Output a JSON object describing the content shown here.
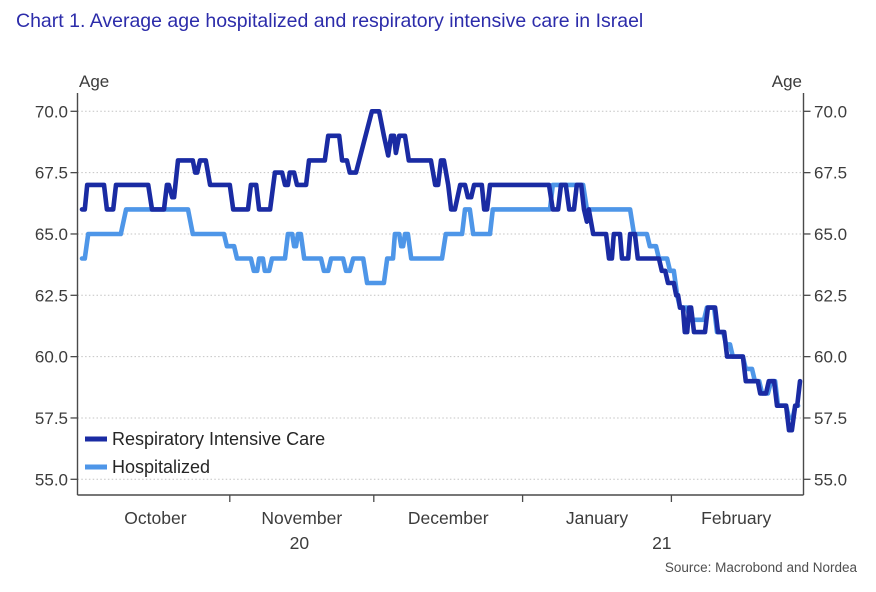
{
  "title": "Chart 1. Average age hospitalized and respiratory intensive care in Israel",
  "source": "Source: Macrobond and Nordea",
  "chart_data": {
    "type": "line",
    "title": "Chart 1. Average age hospitalized and respiratory intensive care in Israel",
    "ylabel": "Age",
    "ylabel_right": "Age",
    "ylim": [
      55.0,
      70.0
    ],
    "yticks": [
      55.0,
      57.5,
      60.0,
      62.5,
      65.0,
      67.5,
      70.0
    ],
    "grid": "horizontal-dotted",
    "legend_position": "inside-bottom-left",
    "x_unit": "days since 1 Oct 2020",
    "months": [
      {
        "label": "October",
        "start": 0,
        "end": 31
      },
      {
        "label": "November",
        "start": 31,
        "end": 61
      },
      {
        "label": "December",
        "start": 61,
        "end": 92
      },
      {
        "label": "January",
        "start": 92,
        "end": 123
      },
      {
        "label": "February",
        "start": 123,
        "end": 151
      }
    ],
    "year_labels": [
      {
        "label": "20",
        "day": 45.5
      },
      {
        "label": "21",
        "day": 121
      }
    ],
    "series": [
      {
        "name": "Hospitalized",
        "color": "#4e96e8",
        "points": [
          [
            0.2,
            64
          ],
          [
            0.8,
            64
          ],
          [
            1.5,
            65
          ],
          [
            8.3,
            65
          ],
          [
            9.4,
            66
          ],
          [
            22.3,
            66
          ],
          [
            23.3,
            65
          ],
          [
            29.8,
            65
          ],
          [
            30.4,
            64.5
          ],
          [
            31.9,
            64.5
          ],
          [
            32.5,
            64
          ],
          [
            35.4,
            64
          ],
          [
            36,
            63.5
          ],
          [
            36.7,
            63.5
          ],
          [
            37.1,
            64
          ],
          [
            37.9,
            64
          ],
          [
            38.3,
            63.5
          ],
          [
            39.2,
            63.5
          ],
          [
            39.8,
            64
          ],
          [
            42.5,
            64
          ],
          [
            43.1,
            65
          ],
          [
            44,
            65
          ],
          [
            44.4,
            64.5
          ],
          [
            44.8,
            64.5
          ],
          [
            45.2,
            65
          ],
          [
            45.8,
            65
          ],
          [
            46.5,
            64
          ],
          [
            50,
            64
          ],
          [
            50.6,
            63.5
          ],
          [
            51.5,
            63.5
          ],
          [
            52.1,
            64
          ],
          [
            54.6,
            64
          ],
          [
            55.2,
            63.5
          ],
          [
            56,
            63.5
          ],
          [
            56.7,
            64
          ],
          [
            58.8,
            64
          ],
          [
            59.6,
            63
          ],
          [
            63.1,
            63
          ],
          [
            63.8,
            64
          ],
          [
            65,
            64
          ],
          [
            65.4,
            65
          ],
          [
            66.3,
            65
          ],
          [
            66.7,
            64.5
          ],
          [
            67.1,
            64.5
          ],
          [
            67.5,
            65
          ],
          [
            68.1,
            65
          ],
          [
            68.8,
            64
          ],
          [
            75.2,
            64
          ],
          [
            76,
            65
          ],
          [
            79.4,
            65
          ],
          [
            80,
            66
          ],
          [
            81,
            66
          ],
          [
            81.7,
            65
          ],
          [
            85.2,
            65
          ],
          [
            85.8,
            66
          ],
          [
            97.7,
            66
          ],
          [
            98.3,
            67
          ],
          [
            104.6,
            67
          ],
          [
            105.4,
            66
          ],
          [
            114.4,
            66
          ],
          [
            115.2,
            65
          ],
          [
            117.9,
            65
          ],
          [
            118.5,
            64.5
          ],
          [
            119.8,
            64.5
          ],
          [
            120.4,
            64
          ],
          [
            122.1,
            64
          ],
          [
            122.7,
            63.5
          ],
          [
            123.5,
            63.5
          ],
          [
            124.2,
            62.5
          ],
          [
            124.8,
            62
          ],
          [
            126.3,
            62
          ],
          [
            126.9,
            61.5
          ],
          [
            129.8,
            61.5
          ],
          [
            130.4,
            62
          ],
          [
            131.9,
            62
          ],
          [
            132.5,
            61
          ],
          [
            133.8,
            61
          ],
          [
            134.4,
            60.5
          ],
          [
            135.2,
            60.5
          ],
          [
            135.8,
            60
          ],
          [
            137.9,
            60
          ],
          [
            138.5,
            59.5
          ],
          [
            139.8,
            59.5
          ],
          [
            140.4,
            59
          ],
          [
            141.3,
            59
          ],
          [
            141.9,
            58.5
          ],
          [
            143.1,
            58.5
          ],
          [
            143.8,
            59
          ],
          [
            144.6,
            59
          ],
          [
            145.2,
            58
          ],
          [
            146.9,
            58
          ],
          [
            147.5,
            57.5
          ],
          [
            148.3,
            57.5
          ],
          [
            148.8,
            58
          ],
          [
            149.4,
            58
          ]
        ]
      },
      {
        "name": "Respiratory Intensive Care",
        "color": "#1a2ba3",
        "points": [
          [
            0.2,
            66
          ],
          [
            0.8,
            66
          ],
          [
            1.3,
            67
          ],
          [
            4.8,
            67
          ],
          [
            5.4,
            66
          ],
          [
            6.7,
            66
          ],
          [
            7.3,
            67
          ],
          [
            14,
            67
          ],
          [
            14.8,
            66
          ],
          [
            17.3,
            66
          ],
          [
            17.9,
            67
          ],
          [
            18.3,
            67
          ],
          [
            19,
            66.5
          ],
          [
            19.4,
            66.5
          ],
          [
            20.2,
            68
          ],
          [
            23.3,
            68
          ],
          [
            23.8,
            67.5
          ],
          [
            24.2,
            67.5
          ],
          [
            24.8,
            68
          ],
          [
            26,
            68
          ],
          [
            26.9,
            67
          ],
          [
            31,
            67
          ],
          [
            31.7,
            66
          ],
          [
            34.8,
            66
          ],
          [
            35.4,
            67
          ],
          [
            36.5,
            67
          ],
          [
            37.1,
            66
          ],
          [
            39.4,
            66
          ],
          [
            40.4,
            67.5
          ],
          [
            41.9,
            67.5
          ],
          [
            42.5,
            67
          ],
          [
            43.1,
            67
          ],
          [
            43.5,
            67.5
          ],
          [
            44.4,
            67.5
          ],
          [
            45,
            67
          ],
          [
            46.9,
            67
          ],
          [
            47.5,
            68
          ],
          [
            50.8,
            68
          ],
          [
            51.5,
            69
          ],
          [
            53.8,
            69
          ],
          [
            54.4,
            68
          ],
          [
            55.4,
            68
          ],
          [
            56,
            67.5
          ],
          [
            57.3,
            67.5
          ],
          [
            60.6,
            70
          ],
          [
            62.1,
            70
          ],
          [
            63.1,
            69
          ],
          [
            64,
            68.2
          ],
          [
            64.6,
            69
          ],
          [
            65.2,
            69
          ],
          [
            65.6,
            68.3
          ],
          [
            66.3,
            69
          ],
          [
            67.5,
            69
          ],
          [
            68.3,
            68
          ],
          [
            72.9,
            68
          ],
          [
            73.8,
            67
          ],
          [
            74.4,
            67
          ],
          [
            75,
            68
          ],
          [
            75.6,
            68
          ],
          [
            76.5,
            67
          ],
          [
            77.1,
            66
          ],
          [
            77.9,
            66
          ],
          [
            79,
            67
          ],
          [
            80,
            67
          ],
          [
            80.6,
            66.5
          ],
          [
            81.3,
            66.5
          ],
          [
            81.9,
            67
          ],
          [
            83.5,
            67
          ],
          [
            84,
            66
          ],
          [
            84.6,
            66
          ],
          [
            85.2,
            67
          ],
          [
            97.5,
            67
          ],
          [
            98.3,
            66
          ],
          [
            99.4,
            66
          ],
          [
            100,
            67
          ],
          [
            101,
            67
          ],
          [
            101.7,
            66
          ],
          [
            102.7,
            66
          ],
          [
            103.3,
            67
          ],
          [
            104.2,
            67
          ],
          [
            104.8,
            66
          ],
          [
            105.4,
            65.5
          ],
          [
            105.8,
            66
          ],
          [
            106.7,
            65
          ],
          [
            109.4,
            65
          ],
          [
            110,
            64
          ],
          [
            110.6,
            64
          ],
          [
            111,
            65
          ],
          [
            112.3,
            65
          ],
          [
            112.7,
            64
          ],
          [
            114,
            64
          ],
          [
            114.4,
            65
          ],
          [
            115.4,
            65
          ],
          [
            116,
            64
          ],
          [
            120.4,
            64
          ],
          [
            121,
            63.5
          ],
          [
            121.7,
            63.5
          ],
          [
            122.3,
            63
          ],
          [
            123.5,
            63
          ],
          [
            124,
            62.5
          ],
          [
            124.4,
            62.5
          ],
          [
            124.8,
            62
          ],
          [
            125.4,
            62
          ],
          [
            125.8,
            61
          ],
          [
            126.3,
            61
          ],
          [
            126.7,
            62
          ],
          [
            127.1,
            62
          ],
          [
            127.7,
            61
          ],
          [
            130,
            61
          ],
          [
            130.6,
            62
          ],
          [
            132.1,
            62
          ],
          [
            132.7,
            61
          ],
          [
            134,
            61
          ],
          [
            134.6,
            60
          ],
          [
            137.9,
            60
          ],
          [
            138.5,
            59
          ],
          [
            141,
            59
          ],
          [
            141.5,
            58.5
          ],
          [
            142.7,
            58.5
          ],
          [
            143.3,
            59
          ],
          [
            144.4,
            59
          ],
          [
            145,
            58
          ],
          [
            146.9,
            58
          ],
          [
            147.5,
            57
          ],
          [
            148.1,
            57
          ],
          [
            148.8,
            58
          ],
          [
            149.2,
            58
          ],
          [
            149.8,
            59
          ]
        ]
      }
    ],
    "legend": [
      {
        "label": "Respiratory Intensive Care",
        "color": "#1a2ba3"
      },
      {
        "label": "Hospitalized",
        "color": "#4e96e8"
      }
    ]
  }
}
